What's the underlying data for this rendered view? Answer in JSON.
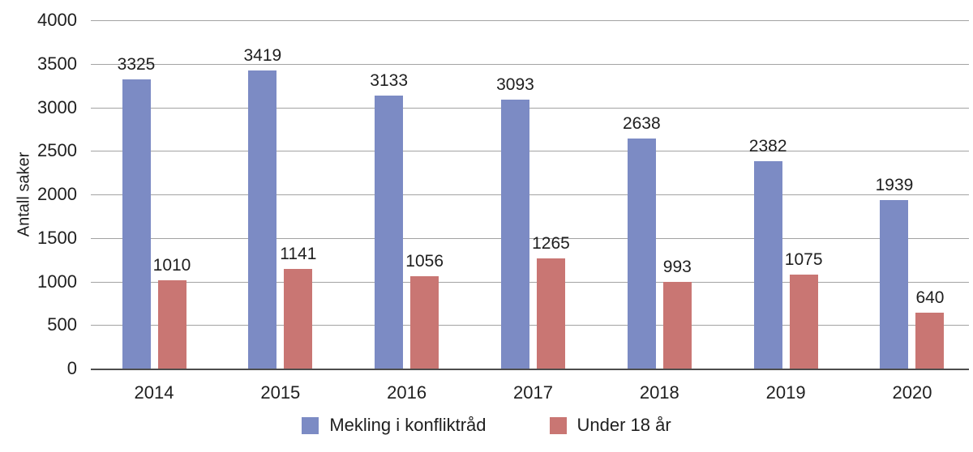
{
  "chart_data": {
    "type": "bar",
    "title": "",
    "ylabel": "Antall saker",
    "xlabel": "",
    "categories": [
      "2014",
      "2015",
      "2016",
      "2017",
      "2018",
      "2019",
      "2020"
    ],
    "series": [
      {
        "name": "Mekling i konfliktråd",
        "color": "#7c8bc4",
        "values": [
          3325,
          3419,
          3133,
          3093,
          2638,
          2382,
          1939
        ]
      },
      {
        "name": "Under 18 år",
        "color": "#c97673",
        "values": [
          1010,
          1141,
          1056,
          1265,
          993,
          1075,
          640
        ]
      }
    ],
    "ylim": [
      0,
      4000
    ],
    "ytick_step": 500,
    "yticks": [
      "4000",
      "3500",
      "3000",
      "2500",
      "2000",
      "1500",
      "1000",
      "500",
      "0"
    ],
    "grid": true,
    "legend_position": "bottom",
    "data_labels": true
  },
  "style": {
    "gridline_color": "#a3a3a3",
    "axis_color": "#4d4d4d",
    "text_color": "#1f1f1f",
    "background": "#ffffff"
  }
}
